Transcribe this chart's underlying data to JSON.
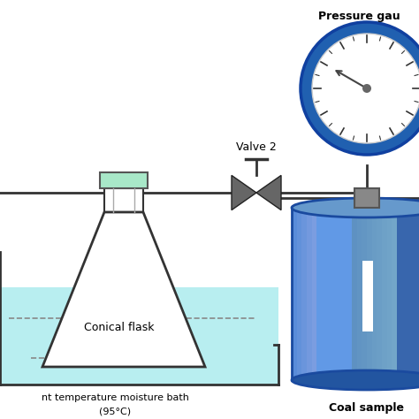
{
  "bg_color": "#ffffff",
  "bath_water_color": "#b8eef0",
  "flask_stopper_color": "#a8e8c8",
  "flask_outline": "#333333",
  "pipe_color": "#333333",
  "valve_color": "#666666",
  "gauge_ring_color": "#2060b0",
  "gauge_face_color": "#ffffff",
  "gauge_tick_color": "#222222",
  "cylinder_dark": "#2060b0",
  "cylinder_mid": "#4488d8",
  "cylinder_light": "#88bbee",
  "connector_color": "#888888",
  "bath_outline": "#333333",
  "label_conical": "Conical flask",
  "label_bath": "nt temperature moisture bath",
  "label_bath2": "(95°C)",
  "label_valve": "Valve 2",
  "label_pressure": "Pressure gau",
  "label_coal": "Coal sample",
  "font_size_label": 9,
  "pipe_lw": 2.0
}
